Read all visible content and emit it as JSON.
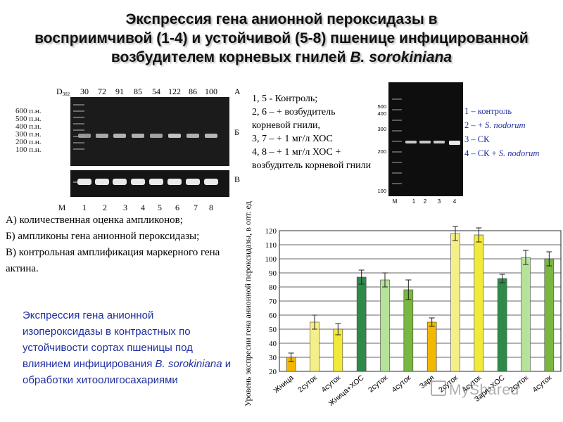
{
  "title": {
    "line1": "Экспрессия гена анионной пероксидазы в",
    "line2": "восприимчивой (1-4) и устойчивой (5-8) пшенице инфицированной",
    "line3": "возбудителем корневых гнилей",
    "line3_italic": "B. sorokiniana"
  },
  "gel_left": {
    "marker_label": "D",
    "marker_sub": "302",
    "quant_values": [
      "30",
      "72",
      "91",
      "85",
      "54",
      "122",
      "86",
      "100"
    ],
    "ladder_labels": [
      "600 п.н.",
      "500 п.н.",
      "400 п.н.",
      "300 п.н.",
      "200 п.н.",
      "100 п.н."
    ],
    "panel_letters": [
      "А",
      "Б",
      "В"
    ],
    "lane_labels": [
      "М",
      "1",
      "2",
      "3",
      "4",
      "5",
      "6",
      "7",
      "8"
    ]
  },
  "legend1": [
    "1, 5 - Контроль;",
    "2, 6 – + возбудитель корневой гнили,",
    "3, 7 – + 1 мг/л ХОС",
    "4, 8 – + 1 мг/л ХОС + возбудитель корневой гнили"
  ],
  "gel_right": {
    "ladder_labels": [
      "500",
      "400",
      "300",
      "200",
      "100"
    ],
    "lane_labels": [
      "M",
      "1",
      "2",
      "3",
      "4"
    ]
  },
  "legend2": [
    {
      "text": "1 – контроль",
      "italic": ""
    },
    {
      "text": "2 – + ",
      "italic": "S. nodorum"
    },
    {
      "text": "3 – СК",
      "italic": ""
    },
    {
      "text": "4 – СК + ",
      "italic": "S. nodorum"
    }
  ],
  "notes": {
    "a": "А)  количественная оценка ампликонов;",
    "b": " Б) ампликоны гена анионной пероксидазы;",
    "c": "В) контрольная амплификация маркерного гена актина."
  },
  "bluetext": {
    "main": "Экспрессия гена анионной изопероксидазы в контрастных по устойчивости сортах пшеницы под влиянием инфицирования",
    "italic": "B. sorokiniana",
    "tail": " и обработки хитоолигосахариями"
  },
  "watermark": "MyShared",
  "chart_data": {
    "type": "bar",
    "ylabel": "Уровень экспресии гена анионной пероксидазы, в опт. ед",
    "ylim": [
      20,
      120
    ],
    "yticks": [
      20,
      30,
      40,
      50,
      60,
      70,
      80,
      90,
      100,
      110,
      120
    ],
    "grid": true,
    "categories": [
      "Жница",
      "2суток",
      "4суток",
      "Жница+ХОС",
      "2суток",
      "4суток",
      "Заря",
      "2суток",
      "4суток",
      "Заря+ХОС",
      "2суток",
      "4суток"
    ],
    "values": [
      30,
      55,
      50,
      87,
      85,
      78,
      55,
      118,
      117,
      86,
      101,
      100
    ],
    "errors": [
      3,
      5,
      4,
      5,
      5,
      7,
      3,
      5,
      5,
      3,
      5,
      5
    ],
    "colors": [
      "#f2b800",
      "#f5ef8a",
      "#f2ea3a",
      "#2f8a4a",
      "#b6e39a",
      "#79b840",
      "#f2b800",
      "#f5ef8a",
      "#f2ea3a",
      "#2f8a4a",
      "#b6e39a",
      "#79b840"
    ]
  }
}
